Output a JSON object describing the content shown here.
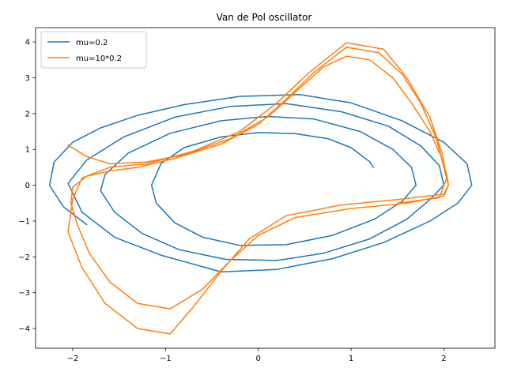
{
  "chart_data": {
    "type": "line",
    "title": "Van de Pol oscillator",
    "xlabel": "",
    "ylabel": "",
    "xlim": [
      -2.4,
      2.55
    ],
    "ylim": [
      -4.55,
      4.4
    ],
    "xticks": [
      -2,
      -1,
      0,
      1,
      2
    ],
    "yticks": [
      -4,
      -3,
      -2,
      -1,
      0,
      1,
      2,
      3,
      4
    ],
    "grid": false,
    "legend_position": "top-left",
    "series": [
      {
        "name": "mu=0.2",
        "color": "#1f77b4",
        "points": [
          [
            1.24,
            0.5
          ],
          [
            1.2,
            0.66
          ],
          [
            1.0,
            1.05
          ],
          [
            0.75,
            1.3
          ],
          [
            0.4,
            1.44
          ],
          [
            0.0,
            1.47
          ],
          [
            -0.4,
            1.35
          ],
          [
            -0.8,
            1.05
          ],
          [
            -1.05,
            0.6
          ],
          [
            -1.15,
            0.0
          ],
          [
            -1.1,
            -0.5
          ],
          [
            -0.9,
            -1.05
          ],
          [
            -0.6,
            -1.45
          ],
          [
            -0.2,
            -1.68
          ],
          [
            0.3,
            -1.66
          ],
          [
            0.8,
            -1.4
          ],
          [
            1.25,
            -0.95
          ],
          [
            1.55,
            -0.45
          ],
          [
            1.7,
            0.0
          ],
          [
            1.65,
            0.5
          ],
          [
            1.45,
            1.0
          ],
          [
            1.1,
            1.5
          ],
          [
            0.6,
            1.85
          ],
          [
            0.1,
            1.92
          ],
          [
            -0.4,
            1.8
          ],
          [
            -0.95,
            1.45
          ],
          [
            -1.4,
            0.9
          ],
          [
            -1.65,
            0.3
          ],
          [
            -1.7,
            -0.15
          ],
          [
            -1.55,
            -0.75
          ],
          [
            -1.25,
            -1.35
          ],
          [
            -0.85,
            -1.8
          ],
          [
            -0.35,
            -2.07
          ],
          [
            0.2,
            -2.1
          ],
          [
            0.7,
            -1.9
          ],
          [
            1.2,
            -1.5
          ],
          [
            1.6,
            -0.95
          ],
          [
            1.85,
            -0.4
          ],
          [
            2.0,
            0.0
          ],
          [
            1.95,
            0.55
          ],
          [
            1.75,
            1.1
          ],
          [
            1.4,
            1.65
          ],
          [
            0.9,
            2.05
          ],
          [
            0.3,
            2.28
          ],
          [
            -0.3,
            2.2
          ],
          [
            -0.9,
            1.9
          ],
          [
            -1.45,
            1.35
          ],
          [
            -1.85,
            0.7
          ],
          [
            -2.05,
            0.05
          ],
          [
            -1.9,
            -0.75
          ],
          [
            -1.55,
            -1.45
          ],
          [
            -1.05,
            -1.95
          ],
          [
            -0.4,
            -2.42
          ],
          [
            0.2,
            -2.35
          ],
          [
            0.8,
            -2.05
          ],
          [
            1.35,
            -1.6
          ],
          [
            1.85,
            -1.0
          ],
          [
            2.15,
            -0.5
          ],
          [
            2.3,
            0.0
          ],
          [
            2.25,
            0.6
          ],
          [
            2.0,
            1.2
          ],
          [
            1.55,
            1.8
          ],
          [
            1.0,
            2.3
          ],
          [
            0.45,
            2.53
          ],
          [
            -0.2,
            2.48
          ],
          [
            -0.8,
            2.25
          ],
          [
            -1.3,
            1.95
          ],
          [
            -1.7,
            1.6
          ],
          [
            -2.0,
            1.2
          ],
          [
            -2.2,
            0.65
          ],
          [
            -2.25,
            0.0
          ],
          [
            -2.1,
            -0.6
          ],
          [
            -1.85,
            -1.1
          ]
        ]
      },
      {
        "name": "mu=10*0.2",
        "color": "#ff7f0e",
        "points": [
          [
            -2.05,
            1.12
          ],
          [
            -1.85,
            0.8
          ],
          [
            -1.6,
            0.6
          ],
          [
            -1.2,
            0.65
          ],
          [
            -0.8,
            0.85
          ],
          [
            -0.3,
            1.3
          ],
          [
            0.1,
            1.9
          ],
          [
            0.4,
            2.6
          ],
          [
            0.7,
            3.3
          ],
          [
            0.95,
            3.6
          ],
          [
            1.2,
            3.5
          ],
          [
            1.45,
            3.0
          ],
          [
            1.65,
            2.3
          ],
          [
            1.85,
            1.5
          ],
          [
            1.97,
            0.8
          ],
          [
            2.03,
            0.3
          ],
          [
            2.05,
            0.0
          ],
          [
            2.0,
            -0.3
          ],
          [
            1.6,
            -0.5
          ],
          [
            1.0,
            -0.65
          ],
          [
            0.4,
            -0.9
          ],
          [
            0.0,
            -1.4
          ],
          [
            -0.3,
            -2.1
          ],
          [
            -0.6,
            -2.9
          ],
          [
            -0.95,
            -3.45
          ],
          [
            -1.3,
            -3.3
          ],
          [
            -1.6,
            -2.7
          ],
          [
            -1.82,
            -1.9
          ],
          [
            -1.95,
            -1.1
          ],
          [
            -2.02,
            -0.5
          ],
          [
            -2.0,
            -0.05
          ],
          [
            -1.85,
            0.25
          ],
          [
            -1.6,
            0.4
          ],
          [
            -1.3,
            0.5
          ],
          [
            -0.9,
            0.75
          ],
          [
            -0.4,
            1.15
          ],
          [
            0.0,
            1.7
          ],
          [
            0.3,
            2.4
          ],
          [
            0.6,
            3.15
          ],
          [
            0.95,
            3.85
          ],
          [
            1.3,
            3.7
          ],
          [
            1.55,
            3.1
          ],
          [
            1.75,
            2.3
          ],
          [
            1.92,
            1.3
          ],
          [
            2.0,
            0.5
          ],
          [
            2.05,
            0.0
          ],
          [
            2.0,
            -0.25
          ],
          [
            1.5,
            -0.4
          ],
          [
            0.9,
            -0.55
          ],
          [
            0.3,
            -0.85
          ],
          [
            -0.1,
            -1.5
          ],
          [
            -0.4,
            -2.4
          ],
          [
            -0.7,
            -3.4
          ],
          [
            -0.95,
            -4.15
          ],
          [
            -1.3,
            -4.0
          ],
          [
            -1.65,
            -3.3
          ],
          [
            -1.9,
            -2.3
          ],
          [
            -2.05,
            -1.3
          ],
          [
            -2.0,
            -0.4
          ],
          [
            -1.9,
            0.2
          ],
          [
            -1.6,
            0.5
          ],
          [
            -1.2,
            0.6
          ],
          [
            -0.7,
            0.95
          ],
          [
            -0.2,
            1.5
          ],
          [
            0.2,
            2.3
          ],
          [
            0.55,
            3.15
          ],
          [
            0.95,
            3.98
          ],
          [
            1.35,
            3.8
          ],
          [
            1.6,
            3.0
          ],
          [
            1.85,
            1.9
          ],
          [
            1.98,
            0.9
          ],
          [
            2.03,
            0.2
          ],
          [
            1.95,
            -0.35
          ],
          [
            1.5,
            -0.5
          ]
        ]
      }
    ]
  }
}
